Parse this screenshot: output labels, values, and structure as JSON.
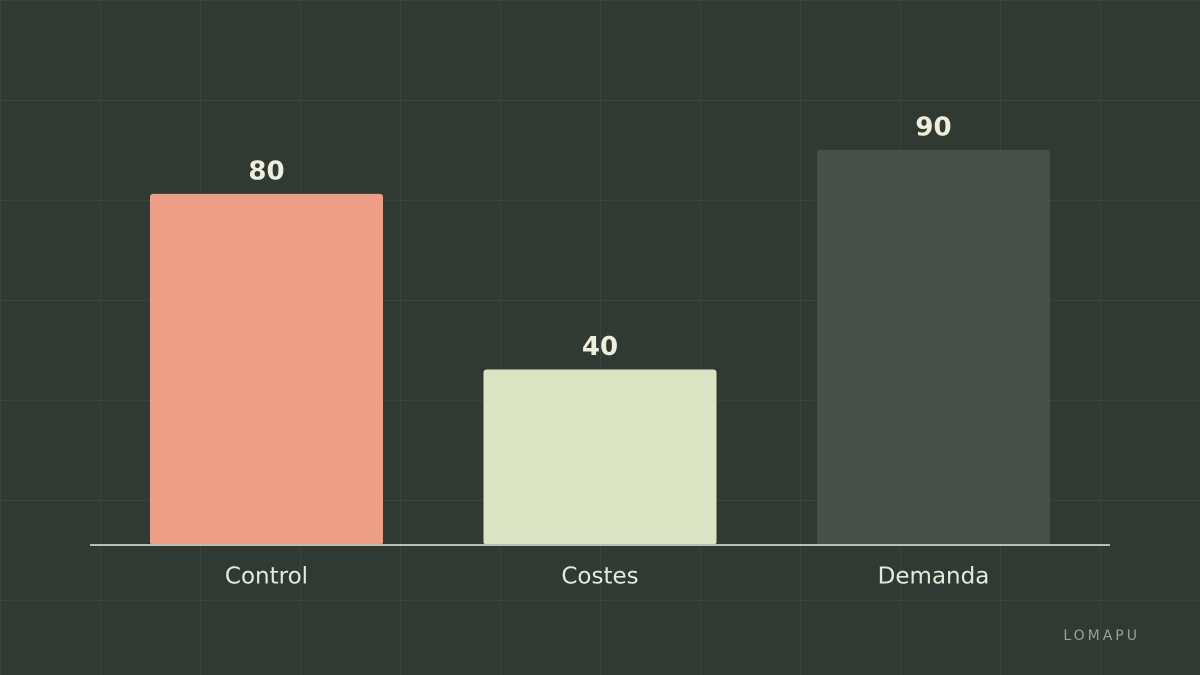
{
  "chart_data": {
    "type": "bar",
    "categories": [
      "Control",
      "Costes",
      "Demanda"
    ],
    "values": [
      80,
      40,
      90
    ],
    "colors": [
      "#ee9e84",
      "#dce3c2",
      "#465048"
    ],
    "watermark": "LOMAPU"
  }
}
